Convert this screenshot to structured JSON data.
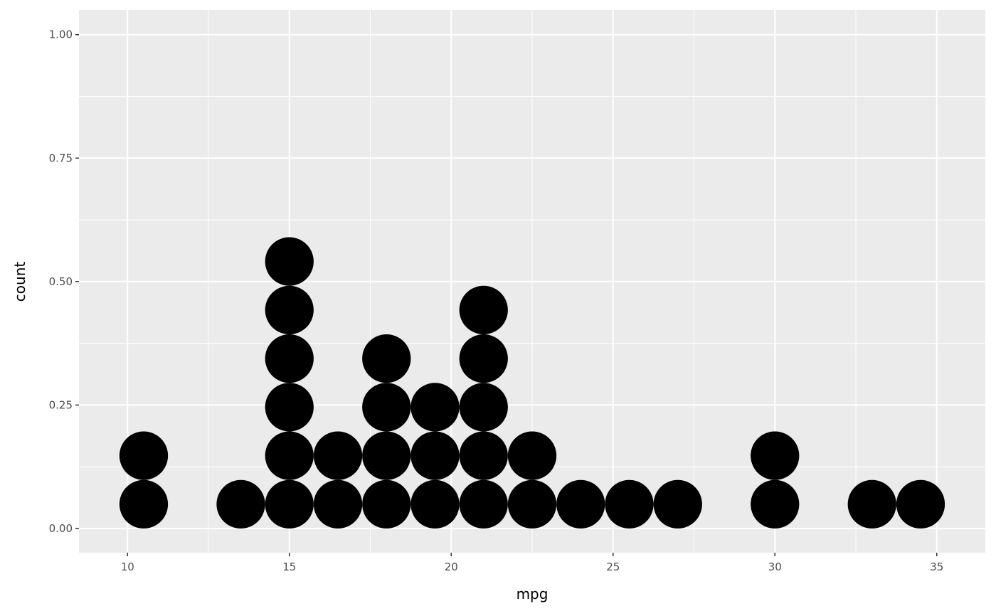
{
  "chart_data": {
    "type": "dotplot",
    "xlabel": "mpg",
    "ylabel": "count",
    "xlim": [
      8.5,
      36.5
    ],
    "ylim": [
      -0.049,
      1.05
    ],
    "binwidth": 1.5,
    "x_ticks": [
      10,
      15,
      20,
      25,
      30,
      35
    ],
    "x_tick_labels": [
      "10",
      "15",
      "20",
      "25",
      "30",
      "35"
    ],
    "y_ticks": [
      0,
      0.25,
      0.5,
      0.75,
      1.0
    ],
    "y_tick_labels": [
      "0.00",
      "0.25",
      "0.50",
      "0.75",
      "1.00"
    ],
    "grid": true,
    "panel_background": "#ebebeb",
    "dot_color": "#000000",
    "stacks": [
      {
        "x": 10.5,
        "count": 2
      },
      {
        "x": 13.5,
        "count": 1
      },
      {
        "x": 15.0,
        "count": 6
      },
      {
        "x": 16.5,
        "count": 2
      },
      {
        "x": 18.0,
        "count": 4
      },
      {
        "x": 19.5,
        "count": 3
      },
      {
        "x": 21.0,
        "count": 5
      },
      {
        "x": 22.5,
        "count": 2
      },
      {
        "x": 24.0,
        "count": 1
      },
      {
        "x": 25.5,
        "count": 1
      },
      {
        "x": 27.0,
        "count": 1
      },
      {
        "x": 30.0,
        "count": 2
      },
      {
        "x": 33.0,
        "count": 1
      },
      {
        "x": 34.5,
        "count": 1
      }
    ]
  }
}
